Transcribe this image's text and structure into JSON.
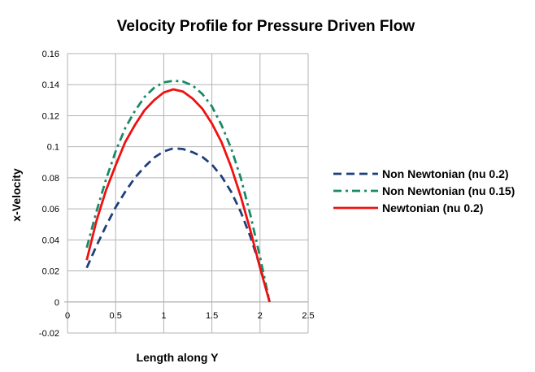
{
  "chart_data": {
    "type": "line",
    "title": "Velocity Profile for Pressure Driven Flow",
    "xlabel": "Length along Y",
    "ylabel": "x-Velocity",
    "xlim": [
      0,
      2.5
    ],
    "ylim": [
      -0.02,
      0.16
    ],
    "xticks": [
      "0",
      "0.5",
      "1",
      "1.5",
      "2",
      "2.5"
    ],
    "yticks": [
      "-0.02",
      "0",
      "0.02",
      "0.04",
      "0.06",
      "0.08",
      "0.1",
      "0.12",
      "0.14",
      "0.16"
    ],
    "xtick_values": [
      0,
      0.5,
      1,
      1.5,
      2,
      2.5
    ],
    "ytick_values": [
      -0.02,
      0,
      0.02,
      0.04,
      0.06,
      0.08,
      0.1,
      0.12,
      0.14,
      0.16
    ],
    "grid": "horizontal and vertical",
    "legend_position": "right",
    "series": [
      {
        "name": "Non Newtonian (nu 0.2)",
        "color": "#1f3f7a",
        "dash": "dashed",
        "x": [
          0.2,
          0.3,
          0.4,
          0.5,
          0.6,
          0.7,
          0.8,
          0.9,
          1.0,
          1.1,
          1.2,
          1.3,
          1.4,
          1.5,
          1.6,
          1.7,
          1.8,
          1.9,
          2.0,
          2.1
        ],
        "y": [
          0.022,
          0.036,
          0.049,
          0.061,
          0.071,
          0.08,
          0.087,
          0.093,
          0.097,
          0.099,
          0.0985,
          0.0965,
          0.0935,
          0.0885,
          0.081,
          0.071,
          0.058,
          0.042,
          0.023,
          0.0
        ]
      },
      {
        "name": "Non Newtonian (nu 0.15)",
        "color": "#1a8a66",
        "dash": "dash-dot",
        "x": [
          0.2,
          0.3,
          0.4,
          0.5,
          0.6,
          0.7,
          0.8,
          0.9,
          1.0,
          1.1,
          1.2,
          1.3,
          1.4,
          1.5,
          1.6,
          1.7,
          1.8,
          1.9,
          2.0,
          2.1
        ],
        "y": [
          0.035,
          0.058,
          0.079,
          0.097,
          0.112,
          0.123,
          0.132,
          0.138,
          0.1415,
          0.1425,
          0.142,
          0.1395,
          0.134,
          0.126,
          0.114,
          0.099,
          0.08,
          0.056,
          0.029,
          0.0
        ]
      },
      {
        "name": "Newtonian (nu 0.2)",
        "color": "#ee1111",
        "dash": "solid",
        "x": [
          0.2,
          0.3,
          0.4,
          0.5,
          0.6,
          0.7,
          0.8,
          0.9,
          1.0,
          1.1,
          1.2,
          1.3,
          1.4,
          1.5,
          1.6,
          1.7,
          1.8,
          1.9,
          2.0,
          2.1
        ],
        "y": [
          0.027,
          0.052,
          0.072,
          0.088,
          0.103,
          0.114,
          0.1235,
          0.13,
          0.135,
          0.137,
          0.1355,
          0.131,
          0.1245,
          0.115,
          0.103,
          0.087,
          0.068,
          0.046,
          0.022,
          0.0
        ]
      }
    ]
  }
}
